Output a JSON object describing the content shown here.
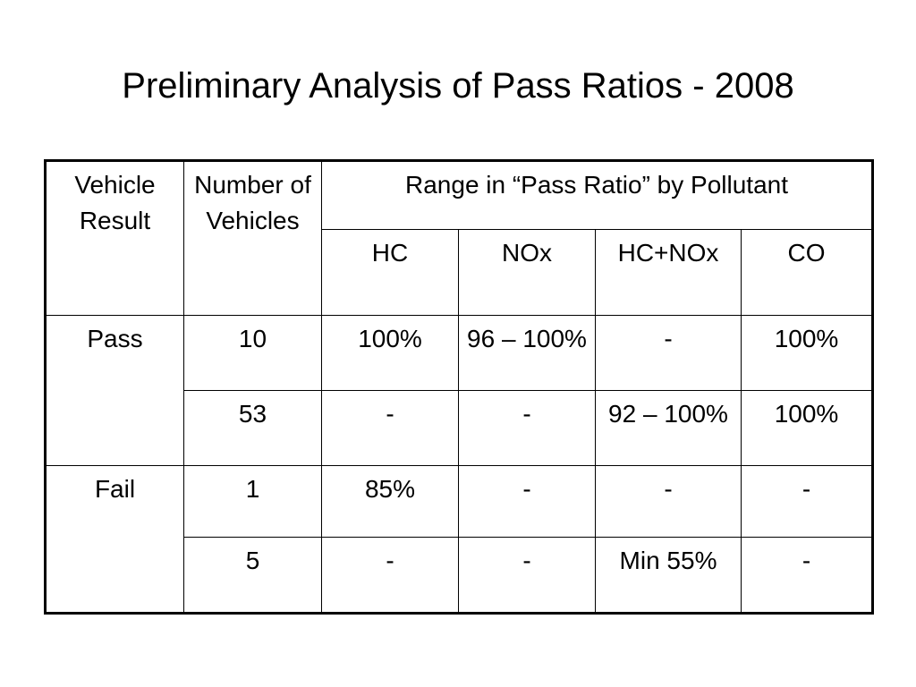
{
  "title": "Preliminary Analysis of Pass Ratios - 2008",
  "table": {
    "header": {
      "vehicle_result": "Vehicle Result",
      "number_of_vehicles": "Number of Vehicles",
      "range_group": "Range in “Pass Ratio” by Pollutant",
      "pollutants": [
        "HC",
        "NOx",
        "HC+NOx",
        "CO"
      ]
    },
    "groups": [
      {
        "result": "Pass",
        "rows": [
          {
            "count": "10",
            "hc": "100%",
            "nox": "96 – 100%",
            "hc_nox": "-",
            "co": "100%"
          },
          {
            "count": "53",
            "hc": "-",
            "nox": "-",
            "hc_nox": "92 – 100%",
            "co": "100%"
          }
        ]
      },
      {
        "result": "Fail",
        "rows": [
          {
            "count": "1",
            "hc": "85%",
            "nox": "-",
            "hc_nox": "-",
            "co": "-"
          },
          {
            "count": "5",
            "hc": "-",
            "nox": "-",
            "hc_nox": "Min 55%",
            "co": "-"
          }
        ]
      }
    ]
  }
}
